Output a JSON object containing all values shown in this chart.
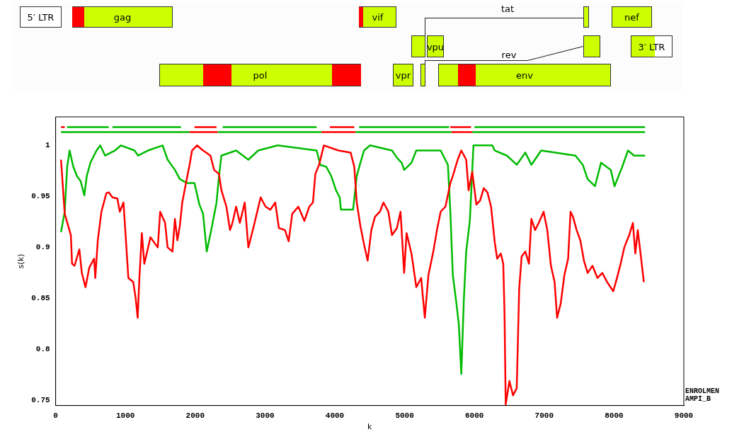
{
  "chart_data": {
    "type": "line",
    "xlabel": "k",
    "ylabel": "s(k)",
    "annotations": [
      "5′ LTR",
      "gag",
      "vif",
      "tat",
      "nef",
      "vpu",
      "3′ LTR",
      "rev",
      "pol",
      "vpr",
      "env",
      "ENROLMEN",
      "AMPI_B"
    ],
    "xlim": [
      0,
      9000
    ],
    "xticks": [
      0,
      1000,
      2000,
      3000,
      4000,
      5000,
      6000,
      7000,
      8000,
      9000
    ],
    "ylim": [
      0.745,
      1.028
    ],
    "yticks": [
      0.75,
      0.8,
      0.85,
      0.9,
      0.95,
      1
    ],
    "grid": false,
    "legend": false,
    "series": [
      {
        "color": "#ff0000",
        "x": [
          77,
          130,
          218,
          235,
          270,
          340,
          375,
          428,
          481,
          551,
          568,
          604,
          656,
          726,
          761,
          814,
          884,
          919,
          972,
          1007,
          1042,
          1112,
          1147,
          1175,
          1200,
          1235,
          1270,
          1305,
          1358,
          1463,
          1498,
          1568,
          1604,
          1674,
          1709,
          1744,
          1779,
          1814,
          1867,
          1919,
          1954,
          2025,
          2112,
          2218,
          2270,
          2340,
          2375,
          2446,
          2498,
          2533,
          2586,
          2639,
          2709,
          2761,
          2832,
          2937,
          3007,
          3077,
          3146,
          3199,
          3286,
          3338,
          3390,
          3477,
          3564,
          3634,
          3686,
          3721,
          3774,
          3843,
          4052,
          4226,
          4279,
          4314,
          4366,
          4418,
          4470,
          4523,
          4575,
          4645,
          4697,
          4767,
          4819,
          4889,
          4941,
          4993,
          5028,
          5098,
          5167,
          5237,
          5289,
          5341,
          5411,
          5463,
          5516,
          5585,
          5655,
          5690,
          5760,
          5812,
          5882,
          5916,
          5969,
          6028,
          6081,
          6133,
          6186,
          6238,
          6291,
          6326,
          6378,
          6413,
          6431,
          6448,
          6501,
          6553,
          6606,
          6641,
          6676,
          6729,
          6781,
          6816,
          6869,
          6921,
          6991,
          7044,
          7096,
          7149,
          7184,
          7236,
          7289,
          7342,
          7377,
          7412,
          7464,
          7517,
          7569,
          7622,
          7692,
          7762,
          7832,
          7902,
          7989,
          8042,
          8095,
          8147,
          8217,
          8270,
          8305,
          8340,
          8392,
          8427
        ],
        "values": [
          0.986,
          0.933,
          0.912,
          0.884,
          0.882,
          0.898,
          0.875,
          0.861,
          0.88,
          0.889,
          0.87,
          0.907,
          0.935,
          0.953,
          0.954,
          0.949,
          0.948,
          0.935,
          0.944,
          0.907,
          0.87,
          0.866,
          0.85,
          0.831,
          0.87,
          0.914,
          0.884,
          0.894,
          0.91,
          0.9,
          0.935,
          0.924,
          0.9,
          0.896,
          0.928,
          0.907,
          0.921,
          0.944,
          0.963,
          0.981,
          0.995,
          1.0,
          0.995,
          0.99,
          0.976,
          0.972,
          0.956,
          0.94,
          0.917,
          0.924,
          0.94,
          0.924,
          0.944,
          0.9,
          0.919,
          0.949,
          0.94,
          0.937,
          0.944,
          0.919,
          0.917,
          0.906,
          0.933,
          0.94,
          0.926,
          0.94,
          0.944,
          0.972,
          0.981,
          1.0,
          0.995,
          0.993,
          0.979,
          0.944,
          0.921,
          0.903,
          0.887,
          0.917,
          0.93,
          0.935,
          0.944,
          0.935,
          0.912,
          0.919,
          0.935,
          0.875,
          0.914,
          0.894,
          0.861,
          0.87,
          0.831,
          0.873,
          0.896,
          0.917,
          0.935,
          0.94,
          0.963,
          0.97,
          0.986,
          0.995,
          0.986,
          0.956,
          0.974,
          0.942,
          0.946,
          0.958,
          0.954,
          0.94,
          0.905,
          0.889,
          0.894,
          0.884,
          0.836,
          0.746,
          0.769,
          0.755,
          0.762,
          0.859,
          0.891,
          0.896,
          0.884,
          0.928,
          0.917,
          0.924,
          0.935,
          0.917,
          0.882,
          0.866,
          0.831,
          0.845,
          0.873,
          0.889,
          0.935,
          0.93,
          0.917,
          0.907,
          0.887,
          0.875,
          0.882,
          0.87,
          0.875,
          0.866,
          0.857,
          0.87,
          0.884,
          0.9,
          0.912,
          0.924,
          0.894,
          0.917,
          0.887,
          0.866
        ]
      },
      {
        "color": "#00bb00",
        "x": [
          77,
          130,
          165,
          200,
          253,
          305,
          358,
          411,
          446,
          498,
          586,
          639,
          709,
          849,
          937,
          1130,
          1182,
          1323,
          1533,
          1604,
          1709,
          1779,
          1884,
          1989,
          2060,
          2112,
          2165,
          2235,
          2305,
          2340,
          2375,
          2586,
          2761,
          2902,
          3181,
          3739,
          3791,
          3878,
          3948,
          4017,
          4070,
          4087,
          4261,
          4314,
          4366,
          4418,
          4505,
          4819,
          4889,
          4958,
          4993,
          5098,
          5167,
          5516,
          5620,
          5655,
          5690,
          5742,
          5777,
          5812,
          5847,
          5882,
          5934,
          5986,
          6256,
          6291,
          6466,
          6606,
          6729,
          6816,
          6956,
          7447,
          7552,
          7622,
          7727,
          7814,
          7954,
          8007,
          8112,
          8200,
          8287,
          8445
        ],
        "values": [
          0.915,
          0.935,
          0.979,
          0.995,
          0.979,
          0.97,
          0.965,
          0.951,
          0.97,
          0.983,
          0.995,
          1.0,
          0.99,
          0.995,
          1.0,
          0.995,
          0.99,
          0.995,
          1.0,
          0.986,
          0.976,
          0.967,
          0.963,
          0.963,
          0.942,
          0.933,
          0.896,
          0.919,
          0.944,
          0.97,
          0.99,
          0.995,
          0.986,
          0.995,
          1.0,
          0.995,
          0.981,
          0.979,
          0.97,
          0.956,
          0.949,
          0.937,
          0.937,
          0.97,
          0.983,
          0.995,
          1.0,
          0.995,
          0.988,
          0.983,
          0.976,
          0.983,
          0.995,
          0.995,
          0.981,
          0.935,
          0.873,
          0.845,
          0.824,
          0.776,
          0.847,
          0.896,
          0.926,
          1.0,
          1.0,
          0.995,
          0.99,
          0.981,
          0.993,
          0.981,
          0.995,
          0.99,
          0.981,
          0.967,
          0.96,
          0.983,
          0.976,
          0.96,
          0.978,
          0.995,
          0.99,
          0.99
        ]
      },
      {
        "color": "#ff0000",
        "x": [
          77,
          130,
          131,
          1989,
          2305,
          2306,
          3930,
          4279,
          4280,
          5655,
          5951
        ],
        "values": [
          1.018,
          1.018,
          null,
          1.018,
          1.018,
          null,
          1.018,
          1.018,
          null,
          1.018,
          1.018
        ]
      },
      {
        "color": "#00bb00",
        "x": [
          165,
          761,
          762,
          814,
          1796,
          1797,
          2393,
          3739,
          3740,
          4348,
          5638,
          5639,
          6000,
          8445
        ],
        "values": [
          1.018,
          1.018,
          null,
          1.018,
          1.018,
          null,
          1.018,
          1.018,
          null,
          1.018,
          1.018,
          null,
          1.018,
          1.018
        ]
      },
      {
        "color": "#ff0000",
        "x": [
          1919,
          2323,
          2324,
          3808,
          4296,
          4297,
          5672,
          5969
        ],
        "values": [
          1.013,
          1.013,
          null,
          1.013,
          1.013,
          null,
          1.013,
          1.013
        ]
      },
      {
        "color": "#00bb00",
        "x": [
          77,
          1919,
          1920,
          2323,
          3808,
          3809,
          4296,
          5672,
          5673,
          5969,
          8445
        ],
        "values": [
          1.013,
          1.013,
          null,
          1.013,
          1.013,
          null,
          1.013,
          1.013,
          null,
          1.013,
          1.013
        ]
      }
    ]
  }
}
